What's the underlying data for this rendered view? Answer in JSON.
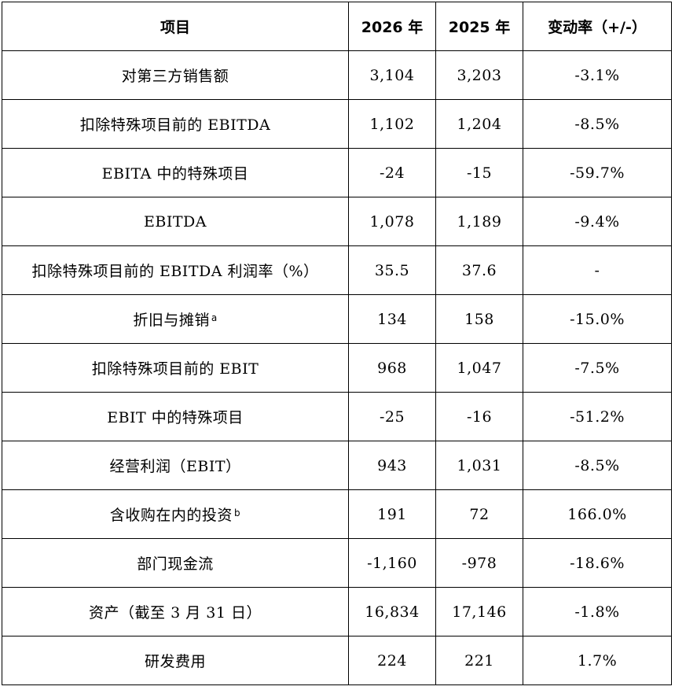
{
  "table": {
    "headers": [
      "项目",
      "2026 年",
      "2025 年",
      "变动率（+/-）"
    ],
    "rows": [
      {
        "item": "对第三方销售额",
        "note": "",
        "y2026": "3,104",
        "y2025": "3,203",
        "change": "-3.1%"
      },
      {
        "item": "扣除特殊项目前的 EBITDA",
        "note": "",
        "y2026": "1,102",
        "y2025": "1,204",
        "change": "-8.5%"
      },
      {
        "item": "EBITA 中的特殊项目",
        "note": "",
        "y2026": "-24",
        "y2025": "-15",
        "change": "-59.7%"
      },
      {
        "item": "EBITDA",
        "note": "",
        "y2026": "1,078",
        "y2025": "1,189",
        "change": "-9.4%"
      },
      {
        "item": "扣除特殊项目前的 EBITDA 利润率（%）",
        "note": "",
        "y2026": "35.5",
        "y2025": "37.6",
        "change": "-"
      },
      {
        "item": "折旧与摊销",
        "note": "a",
        "y2026": "134",
        "y2025": "158",
        "change": "-15.0%"
      },
      {
        "item": "扣除特殊项目前的 EBIT",
        "note": "",
        "y2026": "968",
        "y2025": "1,047",
        "change": "-7.5%"
      },
      {
        "item": "EBIT 中的特殊项目",
        "note": "",
        "y2026": "-25",
        "y2025": "-16",
        "change": "-51.2%"
      },
      {
        "item": "经营利润（EBIT）",
        "note": "",
        "y2026": "943",
        "y2025": "1,031",
        "change": "-8.5%"
      },
      {
        "item": "含收购在内的投资",
        "note": "b",
        "y2026": "191",
        "y2025": "72",
        "change": "166.0%"
      },
      {
        "item": "部门现金流",
        "note": "",
        "y2026": "-1,160",
        "y2025": "-978",
        "change": "-18.6%"
      },
      {
        "item": "资产（截至 3 月 31 日）",
        "note": "",
        "y2026": "16,834",
        "y2025": "17,146",
        "change": "-1.8%"
      },
      {
        "item": "研发费用",
        "note": "",
        "y2026": "224",
        "y2025": "221",
        "change": "1.7%"
      }
    ]
  }
}
